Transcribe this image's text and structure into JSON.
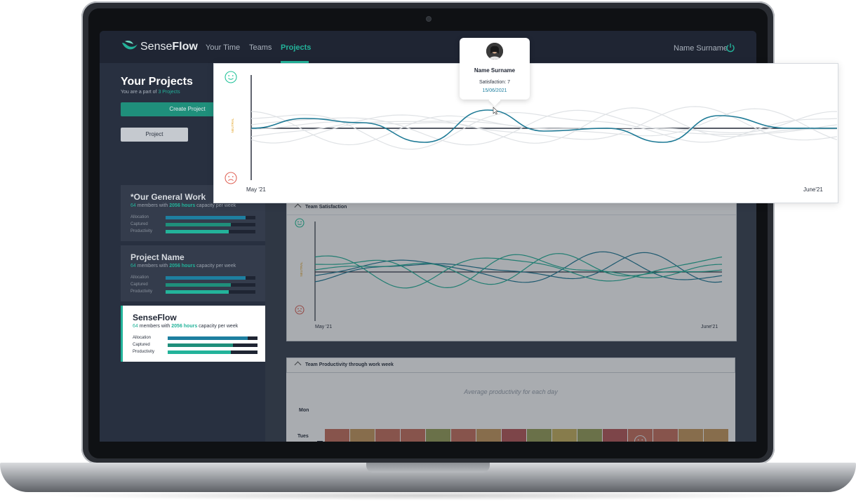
{
  "brand": {
    "name_light": "Sense",
    "name_bold": "Flow"
  },
  "nav": {
    "items": [
      "Your Time",
      "Teams",
      "Projects"
    ],
    "active": "Projects"
  },
  "user": {
    "name": "Name Surname"
  },
  "sidebar": {
    "title": "Your Projects",
    "subtitle_prefix": "You are a part of ",
    "subtitle_link": "3 Projects",
    "create_label": "Create Project",
    "segment_label": "Project",
    "bar_labels": [
      "Allocation",
      "Captured",
      "Productivity"
    ],
    "cards": [
      {
        "name": "*Our General Work",
        "members": "64",
        "mid": " members with ",
        "hours": "2056 hours",
        "tail": " capacity per week",
        "allocation": 0.89,
        "captured": 0.73,
        "productivity": 0.7
      },
      {
        "name": "Project Name",
        "members": "64",
        "mid": " members with ",
        "hours": "2056 hours",
        "tail": " capacity per week",
        "allocation": 0.89,
        "captured": 0.73,
        "productivity": 0.7
      },
      {
        "name": "SenseFlow",
        "members": "64",
        "mid": " members with ",
        "hours": "2056 hours",
        "tail": " capacity per week",
        "allocation": 0.89,
        "captured": 0.73,
        "productivity": 0.7
      }
    ]
  },
  "team_satisfaction": {
    "title": "Team Satisfaction",
    "neutral_label": "NEUTRAL",
    "x_start": "May '21",
    "x_end": "June'21"
  },
  "productivity": {
    "title": "Team Productivity through work week",
    "subtitle": "Average productivity for each day",
    "days": [
      "Mon",
      "Tues"
    ],
    "rows": [
      [
        "#c9725e",
        "#c99a5e",
        "#c9725e",
        "#c9725e",
        "#9aa05a",
        "#c9725e",
        "#c99a5e",
        "#b95a5a",
        "#9aa05a",
        "#c9b25e",
        "#9aa05a",
        "#b95a5a",
        "#c9725e",
        "#c9725e",
        "#c99a5e",
        "#c99a5e"
      ],
      [
        "#6aa06a",
        "#2a9a78",
        "#4a9a70",
        "#c9a25e",
        "#4a9a70",
        "#4a9a70",
        "#2a9a78",
        "#c9725e",
        "#c9725e",
        "#c9725e",
        "#9aa05a",
        "#c9725e",
        "#2a9a78",
        "#c9725e",
        "#2a9a78",
        "#c9a25e"
      ]
    ],
    "smiley_cells": [
      [
        0,
        12,
        "sad"
      ],
      [
        1,
        1,
        "happy"
      ],
      [
        1,
        14,
        "happy"
      ]
    ]
  },
  "overlay": {
    "x_start": "May '21",
    "x_end": "June'21",
    "neutral_label": "NEUTRAL",
    "tooltip": {
      "name": "Name Surname",
      "satisfaction": "Satisfaction: 7",
      "date": "15/06/2021"
    }
  },
  "colors": {
    "accent": "#23b39a",
    "highlight_line": "#1e7a96",
    "happy": "#23c39a",
    "sad": "#e0665a",
    "neutral": "#e0a020"
  }
}
